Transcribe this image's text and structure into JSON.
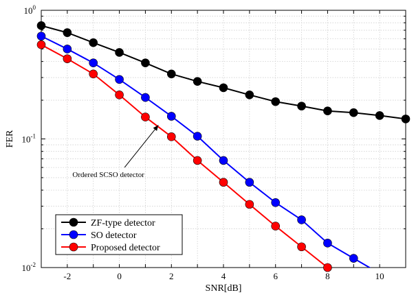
{
  "chart_data": {
    "type": "line",
    "xlabel": "SNR[dB]",
    "ylabel": "FER",
    "xlim": [
      -3,
      11
    ],
    "ylim": [
      0.01,
      1
    ],
    "yscale": "log",
    "grid": true,
    "legend_position": "bottom-left",
    "x_ticks": [
      "-2",
      "0",
      "2",
      "4",
      "6",
      "8",
      "10"
    ],
    "y_ticks": [
      {
        "base": "10",
        "exp": "-2"
      },
      {
        "base": "10",
        "exp": "-1"
      },
      {
        "base": "10",
        "exp": "0"
      }
    ],
    "series": [
      {
        "name": "ZF-type detector",
        "color": "#000000",
        "x": [
          -3,
          -2,
          -1,
          0,
          1,
          2,
          3,
          4,
          5,
          6,
          7,
          8,
          9,
          10,
          11
        ],
        "y": [
          0.76,
          0.67,
          0.56,
          0.47,
          0.39,
          0.32,
          0.28,
          0.25,
          0.22,
          0.195,
          0.18,
          0.165,
          0.16,
          0.152,
          0.143
        ]
      },
      {
        "name": "SO detector",
        "color": "#0000ff",
        "x": [
          -3,
          -2,
          -1,
          0,
          1,
          2,
          3,
          4,
          5,
          6,
          7,
          8,
          9,
          10
        ],
        "y": [
          0.63,
          0.5,
          0.39,
          0.29,
          0.21,
          0.15,
          0.105,
          0.068,
          0.046,
          0.032,
          0.0235,
          0.0155,
          0.0118,
          0.009
        ]
      },
      {
        "name": "Proposed detector",
        "color": "#ff0000",
        "x": [
          -3,
          -2,
          -1,
          0,
          1,
          2,
          3,
          4,
          5,
          6,
          7,
          8
        ],
        "y": [
          0.54,
          0.42,
          0.32,
          0.22,
          0.148,
          0.104,
          0.068,
          0.046,
          0.031,
          0.021,
          0.0145,
          0.01
        ]
      }
    ],
    "annotations": [
      {
        "text": "Ordered SCSO detector",
        "x": 1.5,
        "y": 0.128
      }
    ]
  }
}
